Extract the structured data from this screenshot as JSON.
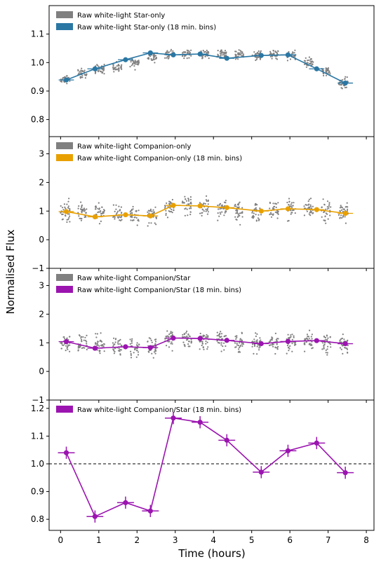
{
  "figure": {
    "xlabel": "Time (hours)",
    "ylabel": "Normalised Flux"
  },
  "chart_data": [
    {
      "type": "scatter",
      "xlim": [
        -0.3,
        8.2
      ],
      "ylim": [
        0.74,
        1.2
      ],
      "yticks": [
        0.8,
        0.9,
        1.0,
        1.1
      ],
      "yticklabels": [
        "0.8",
        "0.9",
        "1.0",
        "1.1"
      ],
      "raw_scatter": {
        "center": [
          0.94,
          0.96,
          0.975,
          0.985,
          1.0,
          1.02,
          1.03,
          1.03,
          1.03,
          1.03,
          1.025,
          1.025,
          1.03,
          1.025,
          1.0,
          0.97,
          0.93
        ],
        "spread": 0.035
      },
      "series": [
        {
          "name": "Raw white-light Star-only",
          "color": "#808080",
          "kind": "raw"
        },
        {
          "name": "Raw white-light Star-only (18 min. bins)",
          "color": "#2a77a4",
          "kind": "binned",
          "x": [
            0.15,
            0.9,
            1.7,
            2.35,
            2.95,
            3.65,
            4.35,
            5.25,
            5.95,
            6.7,
            7.45
          ],
          "y": [
            0.939,
            0.978,
            1.01,
            1.034,
            1.027,
            1.03,
            1.015,
            1.025,
            1.027,
            0.978,
            0.928
          ]
        }
      ]
    },
    {
      "type": "scatter",
      "xlim": [
        -0.3,
        8.2
      ],
      "ylim": [
        -1.0,
        3.6
      ],
      "yticks": [
        -1,
        0,
        1,
        2,
        3
      ],
      "yticklabels": [
        "−1",
        "0",
        "1",
        "2",
        "3"
      ],
      "raw_scatter": {
        "center": [
          1.0,
          1.0,
          0.95,
          0.9,
          0.85,
          0.85,
          1.2,
          1.2,
          1.15,
          1.1,
          1.05,
          1.0,
          1.05,
          1.1,
          1.05,
          1.0,
          0.95
        ],
        "spread": 0.7
      },
      "series": [
        {
          "name": "Raw white-light Companion-only",
          "color": "#808080",
          "kind": "raw"
        },
        {
          "name": "Raw white-light Companion-only (18 min. bins)",
          "color": "#e8a000",
          "kind": "binned",
          "x": [
            0.15,
            0.9,
            1.7,
            2.35,
            2.95,
            3.65,
            4.35,
            5.25,
            5.95,
            6.7,
            7.45
          ],
          "y": [
            0.98,
            0.8,
            0.87,
            0.83,
            1.2,
            1.18,
            1.12,
            1.0,
            1.08,
            1.05,
            0.92
          ]
        }
      ]
    },
    {
      "type": "scatter",
      "xlim": [
        -0.3,
        8.2
      ],
      "ylim": [
        -1.0,
        3.6
      ],
      "yticks": [
        -1,
        0,
        1,
        2,
        3
      ],
      "yticklabels": [
        "−1",
        "0",
        "1",
        "2",
        "3"
      ],
      "raw_scatter": {
        "center": [
          1.0,
          1.0,
          0.95,
          0.85,
          0.85,
          0.85,
          1.15,
          1.15,
          1.12,
          1.08,
          1.02,
          0.98,
          1.02,
          1.05,
          1.05,
          1.0,
          0.98
        ],
        "spread": 0.7
      },
      "series": [
        {
          "name": "Raw white-light Companion/Star",
          "color": "#808080",
          "kind": "raw"
        },
        {
          "name": "Raw white-light Companion/Star (18 min. bins)",
          "color": "#9b14b0",
          "kind": "binned",
          "x": [
            0.15,
            0.9,
            1.7,
            2.35,
            2.95,
            3.65,
            4.35,
            5.25,
            5.95,
            6.7,
            7.45
          ],
          "y": [
            1.04,
            0.81,
            0.86,
            0.83,
            1.165,
            1.15,
            1.085,
            0.97,
            1.047,
            1.075,
            0.968
          ]
        }
      ]
    },
    {
      "type": "line",
      "xlim": [
        -0.3,
        8.2
      ],
      "ylim": [
        0.76,
        1.23
      ],
      "yticks": [
        0.8,
        0.9,
        1.0,
        1.1,
        1.2
      ],
      "yticklabels": [
        "0.8",
        "0.9",
        "1.0",
        "1.1",
        "1.2"
      ],
      "xticks": [
        0,
        1,
        2,
        3,
        4,
        5,
        6,
        7,
        8
      ],
      "xticklabels": [
        "0",
        "1",
        "2",
        "3",
        "4",
        "5",
        "6",
        "7",
        "8"
      ],
      "reference_line": {
        "y": 1.0,
        "style": "dashed",
        "color": "#000000"
      },
      "series": [
        {
          "name": "Raw white-light Companion/Star (18 min. bins)",
          "color": "#9b14b0",
          "kind": "errorbar",
          "x": [
            0.15,
            0.9,
            1.7,
            2.35,
            2.95,
            3.65,
            4.35,
            5.25,
            5.95,
            6.7,
            7.45
          ],
          "y": [
            1.04,
            0.81,
            0.86,
            0.83,
            1.165,
            1.15,
            1.085,
            0.97,
            1.047,
            1.075,
            0.968
          ],
          "xerr": 0.22,
          "yerr": 0.022
        }
      ]
    }
  ]
}
